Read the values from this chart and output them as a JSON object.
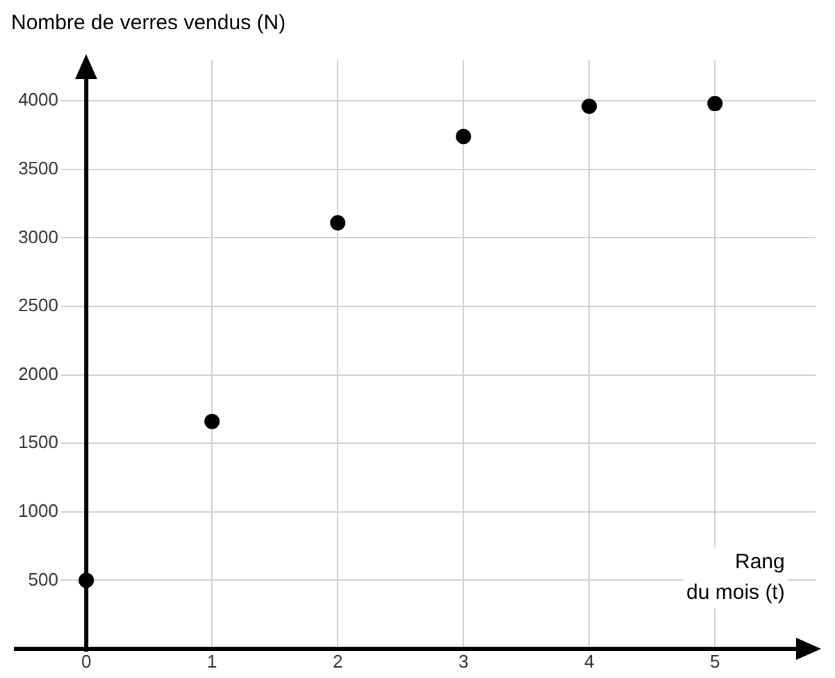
{
  "chart_data": {
    "type": "scatter",
    "ylabel": "Nombre de verres vendus (N)",
    "xlabel": "Rang\ndu mois (t)",
    "x": [
      0,
      1,
      2,
      3,
      4,
      5
    ],
    "values": [
      500,
      1660,
      3110,
      3740,
      3960,
      3980
    ],
    "color": "#000000",
    "marker": "circle",
    "grid": true,
    "xlim": [
      -0.2,
      5.8
    ],
    "ylim": [
      0,
      4300
    ],
    "xticks": [
      0,
      1,
      2,
      3,
      4,
      5
    ],
    "yticks": [
      500,
      1000,
      1500,
      2000,
      2500,
      3000,
      3500,
      4000
    ]
  }
}
